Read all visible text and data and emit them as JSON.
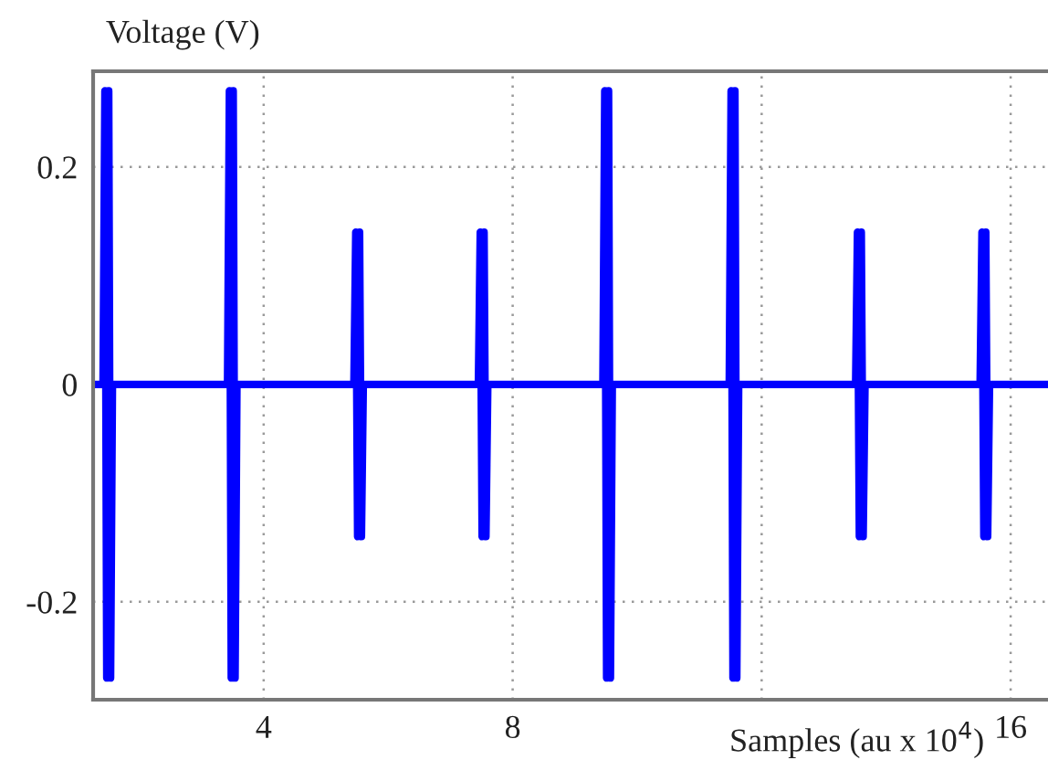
{
  "chart_data": {
    "type": "line",
    "xlabel": "Samples (au x 10$^{4}$)",
    "ylabel": "Voltage (V)",
    "series": [
      {
        "color": "#0000ff",
        "x": [
          1.26,
          1.42,
          1.45,
          1.48,
          1.51,
          1.54,
          1.57,
          3.42,
          3.45,
          3.48,
          3.51,
          3.54,
          3.57,
          5.45,
          5.48,
          5.51,
          5.54,
          5.57,
          5.6,
          7.45,
          7.48,
          7.51,
          7.54,
          7.57,
          7.6,
          9.45,
          9.48,
          9.51,
          9.54,
          9.57,
          9.6,
          11.48,
          11.51,
          11.54,
          11.57,
          11.6,
          11.63,
          13.51,
          13.54,
          13.57,
          13.6,
          13.63,
          13.66,
          15.51,
          15.54,
          15.57,
          15.6,
          15.63,
          15.66,
          16.6
        ],
        "values": [
          0,
          0,
          0.27,
          -0.27,
          0.27,
          -0.27,
          0,
          0,
          0.27,
          -0.27,
          0.27,
          -0.27,
          0,
          0,
          0.14,
          -0.14,
          0.14,
          -0.14,
          0,
          0,
          0.14,
          -0.14,
          0.14,
          -0.14,
          0,
          0,
          0.27,
          -0.27,
          0.27,
          -0.27,
          0,
          0,
          0.27,
          -0.27,
          0.27,
          -0.27,
          0,
          0,
          0.14,
          -0.14,
          0.14,
          -0.14,
          0,
          0,
          0.14,
          -0.14,
          0.14,
          -0.14,
          0,
          0
        ]
      }
    ],
    "xlim": [
      1.26,
      16.6
    ],
    "ylim": [
      -0.29,
      0.288
    ],
    "xticks": [
      4,
      8,
      {
        "value": 12,
        "label": null
      },
      16
    ],
    "yticks": [
      -0.2,
      0,
      0.2
    ],
    "grid": true,
    "marker": "none",
    "line_style": "solid"
  }
}
